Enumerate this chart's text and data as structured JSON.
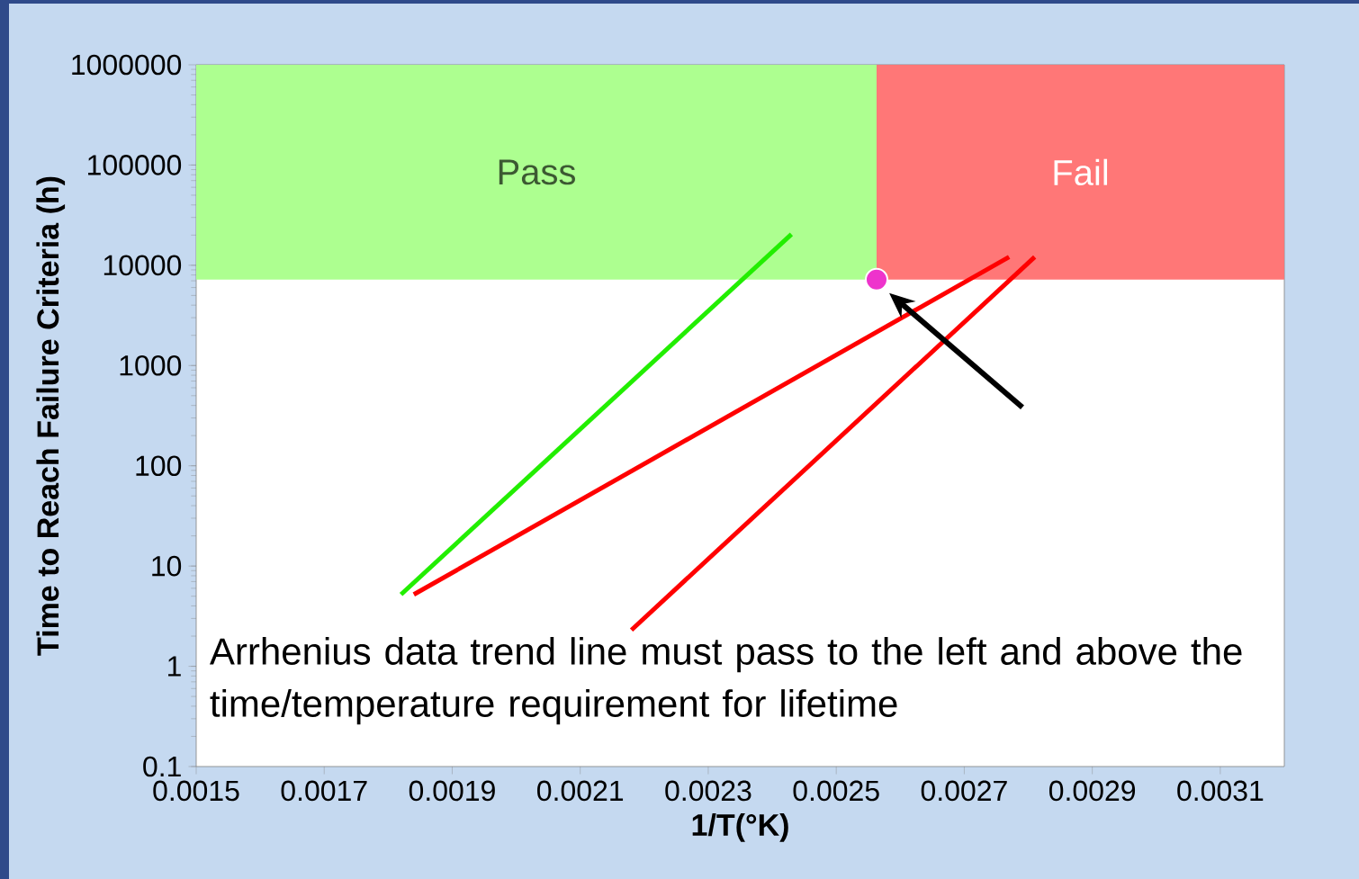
{
  "chart_data": {
    "type": "line",
    "xlabel": "1/T(°K)",
    "ylabel": "Time to Reach Failure Criteria (h)",
    "xlim": [
      0.0015,
      0.0032
    ],
    "ylim": [
      0.1,
      1000000
    ],
    "log": "y",
    "xticks": [
      0.0015,
      0.0017,
      0.0019,
      0.0021,
      0.0023,
      0.0025,
      0.0027,
      0.0029,
      0.0031
    ],
    "yticks": [
      0.1,
      1,
      10,
      100,
      1000,
      10000,
      100000,
      1000000
    ],
    "series": [
      {
        "color": "#22ee00",
        "x": [
          0.00182,
          0.00243
        ],
        "values": [
          5.2,
          20400
        ]
      },
      {
        "color": "#ff0000",
        "x": [
          0.00184,
          0.00277
        ],
        "values": [
          5.2,
          12100
        ]
      },
      {
        "color": "#ff0000",
        "x": [
          0.00218,
          0.00281
        ],
        "values": [
          2.3,
          12100
        ]
      },
      {
        "type": "scatter",
        "color": "#ee33cc",
        "marker": "circle",
        "x": [
          0.002563
        ],
        "values": [
          7200
        ]
      }
    ],
    "bands": [
      {
        "axis": "x",
        "from": 0.0015,
        "to": 0.002563,
        "label": "Pass",
        "color": "#adff90"
      },
      {
        "axis": "x",
        "from": 0.002563,
        "to": 0.0032,
        "label": "Fail",
        "color": "#ff7777"
      }
    ],
    "annotations": [
      "Arrhenius data trend line must pass to the left and above the time/temperature requirement for lifetime"
    ],
    "grid": false
  }
}
